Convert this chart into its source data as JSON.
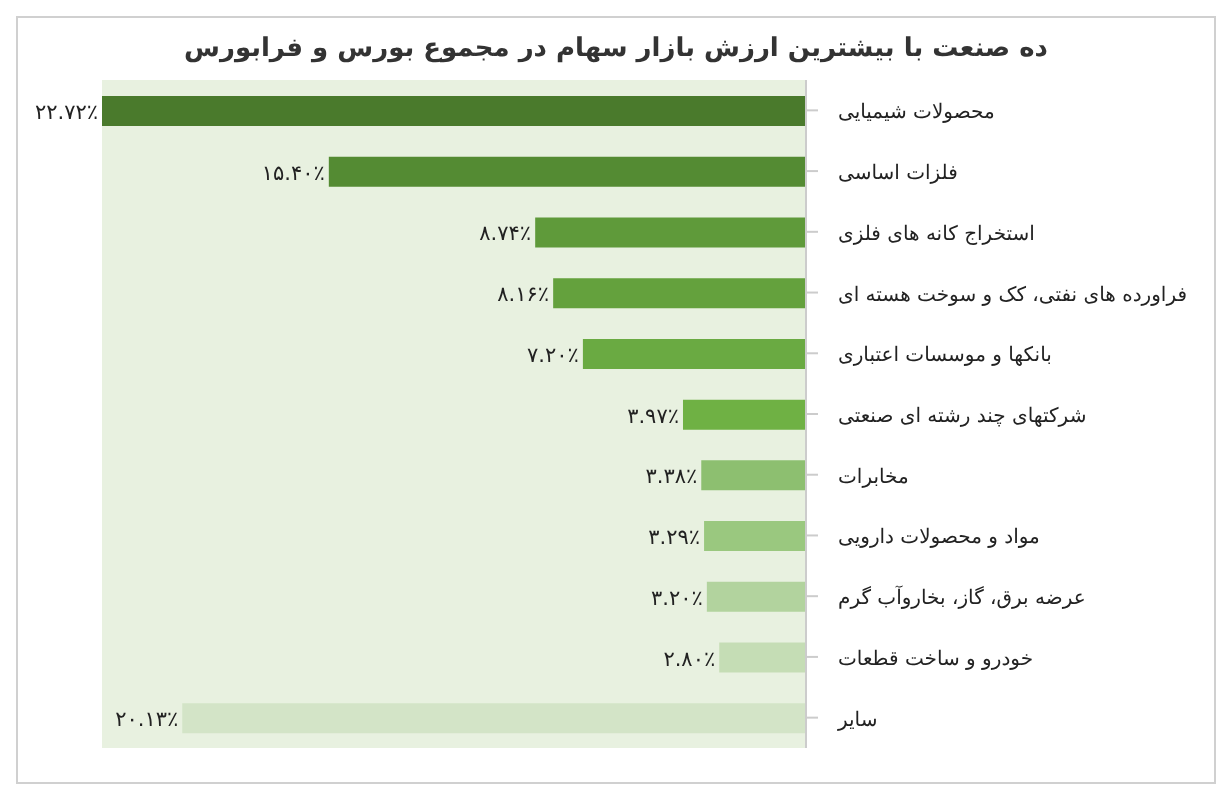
{
  "chart_data": {
    "type": "bar",
    "orientation": "horizontal",
    "title": "ده صنعت با بیشترین ارزش بازار سهام در مجموع بورس و فرابورس",
    "categories": [
      "محصولات شیمیایی",
      "فلزات اساسی",
      "استخراج کانه های فلزی",
      "فراورده های نفتی، کک و سوخت هسته ای",
      "بانکها و موسسات اعتباری",
      "شرکتهای چند رشته ای صنعتی",
      "مخابرات",
      "مواد و محصولات دارویی",
      "عرضه برق، گاز، بخاروآب گرم",
      "خودرو و ساخت قطعات",
      "سایر"
    ],
    "values": [
      22.72,
      15.4,
      8.74,
      8.16,
      7.2,
      3.97,
      3.38,
      3.29,
      3.2,
      2.8,
      20.13
    ],
    "value_labels": [
      "۲۲.۷۲٪",
      "۱۵.۴۰٪",
      "۸.۷۴٪",
      "۸.۱۶٪",
      "۷.۲۰٪",
      "۳.۹۷٪",
      "۳.۳۸٪",
      "۳.۲۹٪",
      "۳.۲۰٪",
      "۲.۸۰٪",
      "۲۰.۱۳٪"
    ],
    "colors": [
      "#4a7a2c",
      "#548b33",
      "#5f9a3a",
      "#64a13d",
      "#6aaa42",
      "#6fb144",
      "#8dbf70",
      "#9ac87f",
      "#b2d39e",
      "#c5ddb5",
      "#d3e4c7"
    ]
  }
}
